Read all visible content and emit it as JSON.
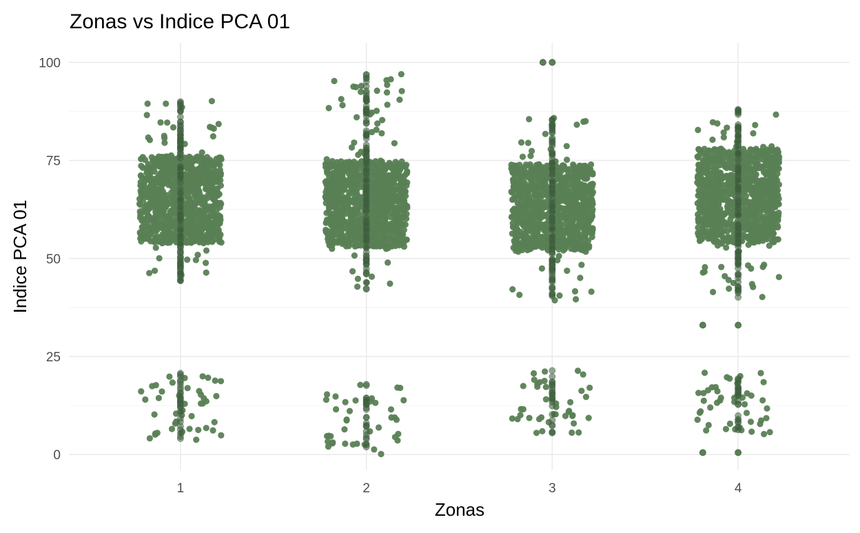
{
  "chart_data": {
    "type": "scatter",
    "title": "Zonas vs Indice PCA 01",
    "xlabel": "Zonas",
    "ylabel": "Indice PCA 01",
    "categories": [
      "1",
      "2",
      "3",
      "4"
    ],
    "x_ticks": [
      "1",
      "2",
      "3",
      "4"
    ],
    "y_ticks": [
      "0",
      "25",
      "50",
      "75",
      "100"
    ],
    "ylim": [
      -4,
      105
    ],
    "grid": true,
    "point_color": "#5a7f55",
    "center_point_color": "#3d5e3c",
    "series": [
      {
        "name": "1",
        "x": 1,
        "jitter_width": 0.22,
        "clusters": [
          {
            "count": 900,
            "dist": "uniform",
            "min": 54,
            "max": 76
          },
          {
            "count": 70,
            "dist": "uniform",
            "min": 42,
            "max": 91
          },
          {
            "count": 45,
            "dist": "uniform",
            "min": 3.5,
            "max": 20.5
          }
        ],
        "center_points": [
          {
            "count": 120,
            "min": 44,
            "max": 91
          },
          {
            "count": 30,
            "min": 4,
            "max": 21
          }
        ]
      },
      {
        "name": "2",
        "x": 2,
        "jitter_width": 0.22,
        "clusters": [
          {
            "count": 900,
            "dist": "uniform",
            "min": 53,
            "max": 75
          },
          {
            "count": 75,
            "dist": "uniform",
            "min": 42,
            "max": 97
          },
          {
            "count": 40,
            "dist": "uniform",
            "min": 0,
            "max": 18.5
          }
        ],
        "center_points": [
          {
            "count": 120,
            "min": 42,
            "max": 97
          },
          {
            "count": 25,
            "min": 0,
            "max": 18.5
          }
        ]
      },
      {
        "name": "3",
        "x": 3,
        "jitter_width": 0.22,
        "clusters": [
          {
            "count": 900,
            "dist": "uniform",
            "min": 52,
            "max": 74
          },
          {
            "count": 70,
            "dist": "uniform",
            "min": 39,
            "max": 86
          },
          {
            "count": 40,
            "dist": "uniform",
            "min": 5.5,
            "max": 21.5
          }
        ],
        "fixed_points": [
          {
            "x_offset": -0.05,
            "y": 100
          },
          {
            "x_offset": 0.0,
            "y": 100
          }
        ],
        "center_points": [
          {
            "count": 120,
            "min": 40,
            "max": 86
          },
          {
            "count": 25,
            "min": 5.5,
            "max": 21.5
          }
        ]
      },
      {
        "name": "4",
        "x": 4,
        "jitter_width": 0.22,
        "clusters": [
          {
            "count": 950,
            "dist": "uniform",
            "min": 54,
            "max": 78
          },
          {
            "count": 80,
            "dist": "uniform",
            "min": 40,
            "max": 88
          },
          {
            "count": 45,
            "dist": "uniform",
            "min": 5,
            "max": 21
          }
        ],
        "fixed_points": [
          {
            "x_offset": -0.19,
            "y": 33
          },
          {
            "x_offset": 0.0,
            "y": 33
          },
          {
            "x_offset": -0.19,
            "y": 0.5
          },
          {
            "x_offset": 0.0,
            "y": 0.5
          }
        ],
        "center_points": [
          {
            "count": 120,
            "min": 40,
            "max": 88
          },
          {
            "count": 25,
            "min": 5,
            "max": 21
          }
        ]
      }
    ]
  }
}
